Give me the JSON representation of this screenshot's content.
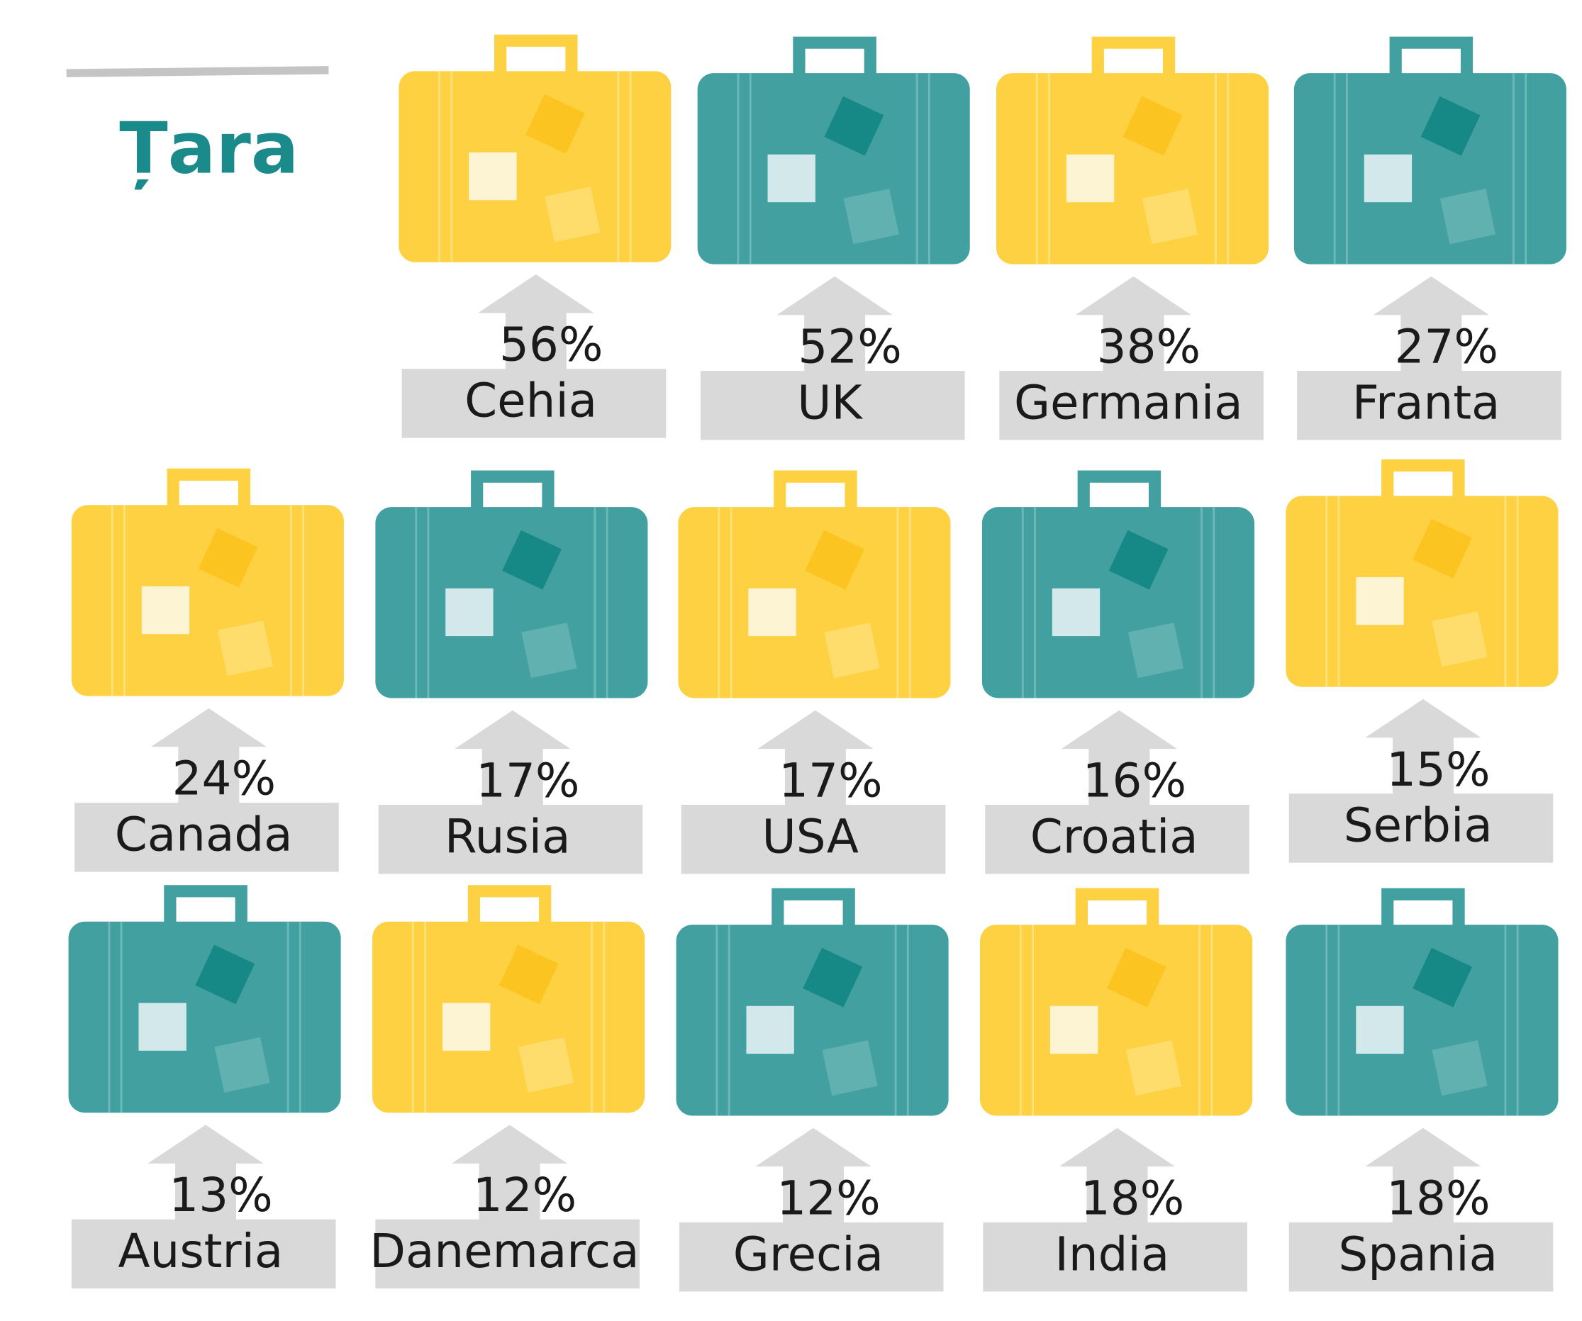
{
  "title": "Țara",
  "items": [
    {
      "country": "Cehia",
      "percent": "56%",
      "color": "yellow"
    },
    {
      "country": "UK",
      "percent": "52%",
      "color": "teal"
    },
    {
      "country": "Germania",
      "percent": "38%",
      "color": "yellow"
    },
    {
      "country": "Franta",
      "percent": "27%",
      "color": "teal"
    },
    {
      "country": "Canada",
      "percent": "24%",
      "color": "yellow"
    },
    {
      "country": "Rusia",
      "percent": "17%",
      "color": "teal"
    },
    {
      "country": "USA",
      "percent": "17%",
      "color": "yellow"
    },
    {
      "country": "Croatia",
      "percent": "16%",
      "color": "teal"
    },
    {
      "country": "Serbia",
      "percent": "15%",
      "color": "yellow"
    },
    {
      "country": "Austria",
      "percent": "13%",
      "color": "teal"
    },
    {
      "country": "Danemarca",
      "percent": "12%",
      "color": "yellow"
    },
    {
      "country": "Grecia",
      "percent": "12%",
      "color": "teal"
    },
    {
      "country": "India",
      "percent": "18%",
      "color": "yellow"
    },
    {
      "country": "Spania",
      "percent": "18%",
      "color": "teal"
    }
  ]
}
